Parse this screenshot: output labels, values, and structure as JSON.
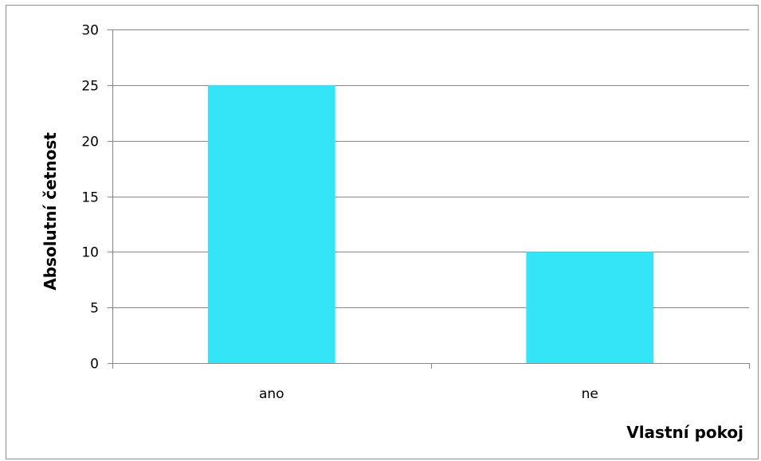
{
  "chart_data": {
    "type": "bar",
    "categories": [
      "ano",
      "ne"
    ],
    "values": [
      25,
      10
    ],
    "title": "",
    "xlabel": "Vlastní pokoj",
    "ylabel": "Absolutní četnost",
    "ylim": [
      0,
      30
    ],
    "yticks": [
      0,
      5,
      10,
      15,
      20,
      25,
      30
    ],
    "grid": true,
    "legend": "none",
    "bar_color": "#33e5f7",
    "grid_color": "#878787"
  }
}
